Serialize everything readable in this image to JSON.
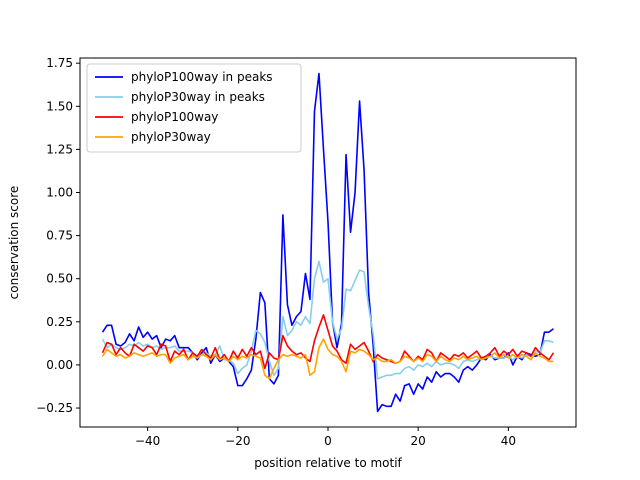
{
  "chart_data": {
    "type": "line",
    "xlabel": "position relative to motif",
    "ylabel": "conservation score",
    "xlim": [
      -55,
      55
    ],
    "ylim": [
      -0.36,
      1.78
    ],
    "xticks": [
      -40,
      -20,
      0,
      20,
      40
    ],
    "xtick_labels": [
      "−40",
      "−20",
      "0",
      "20",
      "40"
    ],
    "yticks": [
      -0.25,
      0.0,
      0.25,
      0.5,
      0.75,
      1.0,
      1.25,
      1.5,
      1.75
    ],
    "ytick_labels": [
      "−0.25",
      "0.00",
      "0.25",
      "0.50",
      "0.75",
      "1.00",
      "1.25",
      "1.50",
      "1.75"
    ],
    "grid": false,
    "legend_position": "top-left",
    "x": [
      -50,
      -49,
      -48,
      -47,
      -46,
      -45,
      -44,
      -43,
      -42,
      -41,
      -40,
      -39,
      -38,
      -37,
      -36,
      -35,
      -34,
      -33,
      -32,
      -31,
      -30,
      -29,
      -28,
      -27,
      -26,
      -25,
      -24,
      -23,
      -22,
      -21,
      -20,
      -19,
      -18,
      -17,
      -16,
      -15,
      -14,
      -13,
      -12,
      -11,
      -10,
      -9,
      -8,
      -7,
      -6,
      -5,
      -4,
      -3,
      -2,
      -1,
      0,
      1,
      2,
      3,
      4,
      5,
      6,
      7,
      8,
      9,
      10,
      11,
      12,
      13,
      14,
      15,
      16,
      17,
      18,
      19,
      20,
      21,
      22,
      23,
      24,
      25,
      26,
      27,
      28,
      29,
      30,
      31,
      32,
      33,
      34,
      35,
      36,
      37,
      38,
      39,
      40,
      41,
      42,
      43,
      44,
      45,
      46,
      47,
      48,
      49,
      50
    ],
    "series": [
      {
        "name": "phyloP100way in peaks",
        "color": "#0000ff",
        "values": [
          0.19,
          0.23,
          0.23,
          0.12,
          0.11,
          0.13,
          0.18,
          0.14,
          0.22,
          0.16,
          0.19,
          0.15,
          0.17,
          0.1,
          0.15,
          0.14,
          0.17,
          0.1,
          0.1,
          0.1,
          0.07,
          0.03,
          0.07,
          0.1,
          0.01,
          0.06,
          0.02,
          0.04,
          0.02,
          -0.01,
          -0.12,
          -0.12,
          -0.08,
          -0.03,
          0.15,
          0.42,
          0.36,
          -0.08,
          -0.11,
          -0.06,
          0.87,
          0.35,
          0.23,
          0.28,
          0.31,
          0.53,
          0.38,
          1.47,
          1.69,
          1.25,
          0.83,
          0.25,
          0.1,
          0.24,
          1.22,
          0.77,
          1.0,
          1.53,
          1.13,
          0.42,
          0.12,
          -0.27,
          -0.23,
          -0.24,
          -0.24,
          -0.17,
          -0.21,
          -0.12,
          -0.11,
          -0.17,
          -0.11,
          -0.14,
          -0.07,
          -0.1,
          -0.04,
          -0.07,
          -0.05,
          -0.05,
          -0.07,
          -0.1,
          -0.03,
          -0.01,
          -0.03,
          0.0,
          0.04,
          0.03,
          0.06,
          0.03,
          0.04,
          0.04,
          0.07,
          0.0,
          0.05,
          0.03,
          0.07,
          0.06,
          0.05,
          0.06,
          0.19,
          0.19,
          0.21
        ]
      },
      {
        "name": "phyloP30way in peaks",
        "color": "#87ceeb",
        "values": [
          0.15,
          0.1,
          0.12,
          0.1,
          0.09,
          0.1,
          0.12,
          0.11,
          0.13,
          0.11,
          0.12,
          0.1,
          0.11,
          0.09,
          0.1,
          0.1,
          0.11,
          0.08,
          0.08,
          0.08,
          0.07,
          0.04,
          0.06,
          0.07,
          0.05,
          0.06,
          0.11,
          0.03,
          0.03,
          0.01,
          -0.05,
          -0.02,
          0.0,
          0.08,
          0.2,
          0.18,
          0.13,
          0.02,
          -0.06,
          -0.02,
          0.28,
          0.17,
          0.2,
          0.25,
          0.23,
          0.28,
          0.24,
          0.5,
          0.6,
          0.48,
          0.5,
          0.25,
          0.15,
          0.21,
          0.44,
          0.43,
          0.49,
          0.55,
          0.54,
          0.34,
          0.18,
          -0.08,
          -0.07,
          -0.06,
          -0.06,
          -0.05,
          -0.05,
          -0.02,
          -0.01,
          -0.03,
          0.0,
          -0.01,
          0.01,
          -0.01,
          0.02,
          0.0,
          0.01,
          0.01,
          0.0,
          -0.02,
          0.02,
          0.03,
          0.02,
          0.03,
          0.04,
          0.04,
          0.05,
          0.04,
          0.04,
          0.04,
          0.05,
          0.03,
          0.05,
          0.04,
          0.06,
          0.05,
          0.08,
          0.07,
          0.14,
          0.14,
          0.13
        ]
      },
      {
        "name": "phyloP100way",
        "color": "#ff0000",
        "values": [
          0.07,
          0.13,
          0.12,
          0.06,
          0.1,
          0.07,
          0.05,
          0.12,
          0.1,
          0.08,
          0.11,
          0.1,
          0.06,
          0.12,
          0.11,
          0.02,
          0.08,
          0.06,
          0.09,
          0.03,
          0.07,
          0.05,
          0.09,
          0.06,
          0.04,
          0.1,
          0.03,
          0.06,
          0.02,
          0.08,
          0.04,
          0.09,
          0.05,
          0.1,
          0.06,
          0.08,
          -0.02,
          0.07,
          0.04,
          0.03,
          0.17,
          0.11,
          0.08,
          0.06,
          0.07,
          0.04,
          0.02,
          0.14,
          0.22,
          0.29,
          0.2,
          0.11,
          0.08,
          0.03,
          0.01,
          0.12,
          0.09,
          0.11,
          0.13,
          0.08,
          0.02,
          0.06,
          0.04,
          0.03,
          0.02,
          0.01,
          0.02,
          0.08,
          0.05,
          0.02,
          0.05,
          0.03,
          0.09,
          0.07,
          0.02,
          0.07,
          0.05,
          0.03,
          0.06,
          0.05,
          0.07,
          0.04,
          0.06,
          0.08,
          0.04,
          0.05,
          0.07,
          0.1,
          0.05,
          0.08,
          0.06,
          0.09,
          0.05,
          0.08,
          0.07,
          0.05,
          0.1,
          0.07,
          0.05,
          0.03,
          0.07
        ]
      },
      {
        "name": "phyloP30way",
        "color": "#ffa500",
        "values": [
          0.05,
          0.09,
          0.07,
          0.05,
          0.06,
          0.04,
          0.05,
          0.07,
          0.06,
          0.05,
          0.06,
          0.07,
          0.05,
          0.06,
          0.06,
          0.01,
          0.04,
          0.05,
          0.06,
          0.03,
          0.05,
          0.04,
          0.06,
          0.05,
          0.03,
          0.06,
          0.03,
          0.04,
          0.02,
          0.05,
          0.03,
          0.05,
          0.04,
          0.06,
          0.05,
          0.04,
          -0.06,
          -0.08,
          -0.02,
          0.03,
          0.06,
          0.05,
          0.06,
          0.05,
          0.04,
          0.06,
          -0.06,
          -0.04,
          0.1,
          0.15,
          0.09,
          0.06,
          0.05,
          0.02,
          -0.04,
          0.08,
          0.07,
          0.09,
          0.08,
          0.06,
          0.03,
          0.04,
          0.02,
          0.02,
          0.03,
          0.01,
          0.02,
          0.05,
          0.04,
          0.02,
          0.04,
          0.02,
          0.06,
          0.05,
          0.02,
          0.05,
          0.03,
          0.02,
          0.04,
          0.03,
          0.05,
          0.03,
          0.04,
          0.05,
          0.03,
          0.04,
          0.05,
          0.07,
          0.04,
          0.06,
          0.04,
          0.06,
          0.04,
          0.06,
          0.05,
          0.03,
          0.07,
          0.05,
          0.04,
          0.02,
          0.02
        ]
      }
    ]
  }
}
